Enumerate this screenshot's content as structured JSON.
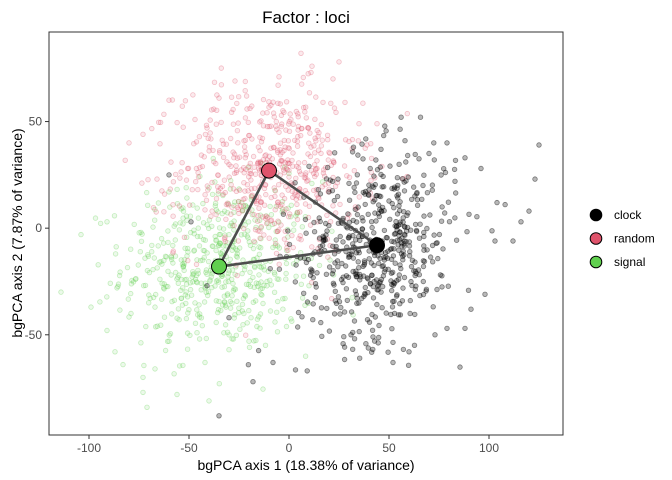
{
  "chart_data": {
    "type": "scatter",
    "title": "Factor : loci",
    "xlabel": "bgPCA axis 1 (18.38% of variance)",
    "ylabel": "bgPCA axis 2 (7.87% of variance)",
    "xlim": [
      -120,
      137
    ],
    "ylim": [
      -97,
      92
    ],
    "x_ticks": [
      -100,
      -50,
      0,
      50,
      100
    ],
    "y_ticks": [
      -50,
      0,
      50
    ],
    "grid": false,
    "legend_position": "right",
    "series": [
      {
        "name": "clock",
        "color": "#000000",
        "centroid": [
          44,
          -8
        ],
        "spread": [
          20,
          22
        ],
        "points": [
          [
            125,
            39
          ],
          [
            123,
            23
          ],
          [
            120,
            8
          ],
          [
            96,
            28
          ],
          [
            88,
            33
          ],
          [
            104,
            12
          ],
          [
            116,
            3
          ],
          [
            79,
            40
          ],
          [
            70,
            35
          ],
          [
            58,
            41
          ],
          [
            46,
            37
          ],
          [
            30,
            21
          ],
          [
            20,
            17
          ],
          [
            -35,
            -88
          ],
          [
            -18,
            -72
          ],
          [
            -8,
            -63
          ],
          [
            31,
            -50
          ],
          [
            60,
            -58
          ],
          [
            73,
            -50
          ],
          [
            79,
            -47
          ],
          [
            88,
            -47
          ],
          [
            91,
            -38
          ],
          [
            98,
            -31
          ],
          [
            103,
            -6
          ],
          [
            112,
            -6
          ],
          [
            -49,
            3
          ],
          [
            -60,
            25
          ],
          [
            -41,
            -27
          ],
          [
            59,
            6
          ],
          [
            67,
            20
          ],
          [
            38,
            16
          ],
          [
            83,
            22
          ],
          [
            10,
            29
          ],
          [
            42,
            -51
          ],
          [
            52,
            -63
          ],
          [
            -30,
            -42
          ]
        ]
      },
      {
        "name": "random",
        "color": "#DF536B",
        "centroid": [
          -10,
          27
        ],
        "spread": [
          23,
          20
        ],
        "points": [
          [
            -5,
            71
          ],
          [
            6,
            82
          ],
          [
            25,
            78
          ],
          [
            11,
            73
          ],
          [
            -27,
            69
          ],
          [
            22,
            70
          ],
          [
            -35,
            61
          ],
          [
            -60,
            60
          ],
          [
            -73,
            44
          ],
          [
            -80,
            40
          ],
          [
            -59,
            31
          ],
          [
            -41,
            47
          ],
          [
            17,
            59
          ],
          [
            28,
            59
          ],
          [
            35,
            49
          ],
          [
            44,
            49
          ],
          [
            39,
            39
          ],
          [
            11,
            38
          ],
          [
            -58,
            11
          ],
          [
            -66,
            23
          ],
          [
            -22,
            36
          ],
          [
            -14,
            12
          ],
          [
            0,
            24
          ],
          [
            -5,
            45
          ],
          [
            -29,
            29
          ],
          [
            5,
            17
          ],
          [
            14,
            28
          ]
        ]
      },
      {
        "name": "signal",
        "color": "#61D04F",
        "centroid": [
          -35,
          -18
        ],
        "spread": [
          24,
          20
        ],
        "points": [
          [
            -114,
            -30
          ],
          [
            -104,
            -3
          ],
          [
            -99,
            -37
          ],
          [
            -91,
            -48
          ],
          [
            -87,
            -58
          ],
          [
            -83,
            -64
          ],
          [
            -73,
            -70
          ],
          [
            -73,
            -77
          ],
          [
            -56,
            -78
          ],
          [
            -40,
            -81
          ],
          [
            -71,
            -84
          ],
          [
            -67,
            -66
          ],
          [
            -91,
            3
          ],
          [
            -60,
            17
          ],
          [
            -74,
            -2
          ],
          [
            -53,
            2
          ],
          [
            -51,
            -13
          ],
          [
            -30,
            -3
          ],
          [
            -16,
            -14
          ],
          [
            -11,
            -25
          ],
          [
            -2,
            -33
          ],
          [
            10,
            -27
          ],
          [
            -86,
            -28
          ],
          [
            -79,
            -40
          ],
          [
            -67,
            -37
          ],
          [
            -60,
            -53
          ],
          [
            -46,
            -49
          ],
          [
            -42,
            -63
          ],
          [
            -30,
            -57
          ],
          [
            -20,
            -53
          ],
          [
            -19,
            -42
          ],
          [
            -7,
            -44
          ],
          [
            -55,
            -22
          ],
          [
            -45,
            -36
          ],
          [
            -28,
            -26
          ],
          [
            -14,
            -31
          ]
        ]
      }
    ],
    "centroid_links": [
      [
        "clock",
        "random"
      ],
      [
        "random",
        "signal"
      ],
      [
        "signal",
        "clock"
      ]
    ],
    "legend": [
      "clock",
      "random",
      "signal"
    ],
    "line_color": "#4d4d4d"
  }
}
